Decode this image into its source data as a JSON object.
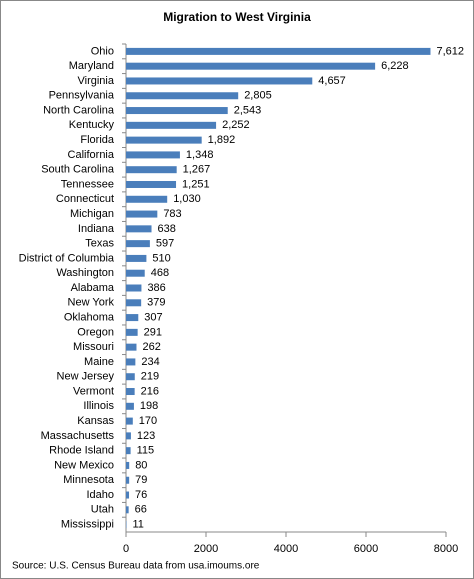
{
  "chart_data": {
    "type": "bar",
    "orientation": "horizontal",
    "title": "Migration to West Virginia",
    "source": "Source: U.S. Census Bureau data from usa.imoums.ore",
    "categories": [
      "Ohio",
      "Maryland",
      "Virginia",
      "Pennsylvania",
      "North Carolina",
      "Kentucky",
      "Florida",
      "California",
      "South Carolina",
      "Tennessee",
      "Connecticut",
      "Michigan",
      "Indiana",
      "Texas",
      "District of Columbia",
      "Washington",
      "Alabama",
      "New York",
      "Oklahoma",
      "Oregon",
      "Missouri",
      "Maine",
      "New Jersey",
      "Vermont",
      "Illinois",
      "Kansas",
      "Massachusetts",
      "Rhode Island",
      "New Mexico",
      "Minnesota",
      "Idaho",
      "Utah",
      "Mississippi"
    ],
    "values": [
      7612,
      6228,
      4657,
      2805,
      2543,
      2252,
      1892,
      1348,
      1267,
      1251,
      1030,
      783,
      638,
      597,
      510,
      468,
      386,
      379,
      307,
      291,
      262,
      234,
      219,
      216,
      198,
      170,
      123,
      115,
      80,
      79,
      76,
      66,
      11
    ],
    "value_labels": [
      "7,612",
      "6,228",
      "4,657",
      "2,805",
      "2,543",
      "2,252",
      "1,892",
      "1,348",
      "1,267",
      "1,251",
      "1,030",
      "783",
      "638",
      "597",
      "510",
      "468",
      "386",
      "379",
      "307",
      "291",
      "262",
      "234",
      "219",
      "216",
      "198",
      "170",
      "123",
      "115",
      "80",
      "79",
      "76",
      "66",
      "11"
    ],
    "color": "#4a7ebb",
    "xlim": [
      0,
      8000
    ],
    "xticks": [
      0,
      2000,
      4000,
      6000,
      8000
    ],
    "grid": false
  }
}
